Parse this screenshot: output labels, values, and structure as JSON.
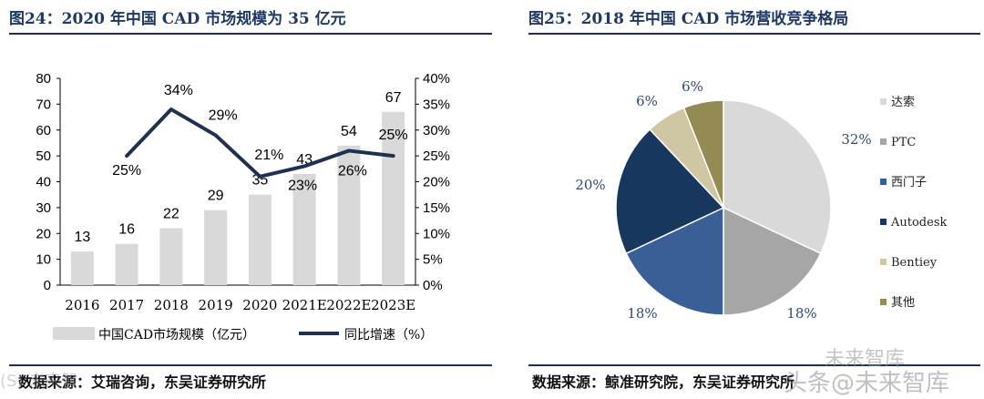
{
  "left": {
    "title": "图24：2020 年中国 CAD 市场规模为 35 亿元",
    "source": "数据来源：艾瑞咨询，东吴证券研究所",
    "legend_bar": "中国CAD市场规模（亿元）",
    "legend_line": "同比增速（%）"
  },
  "right": {
    "title": "图25：2018 年中国 CAD 市场营收竞争格局",
    "source": "数据来源：鲸准研究院，东吴证券研究所"
  },
  "watermark": {
    "text1": "未来智库",
    "text2": "头条@未来智库",
    "text3": "(S) 未来智"
  },
  "colors": {
    "bar": "#d9d9d9",
    "line": "#1f3050",
    "title": "#1f3864"
  },
  "chart_data": [
    {
      "type": "bar",
      "categories": [
        "2016",
        "2017",
        "2018",
        "2019",
        "2020",
        "2021E",
        "2022E",
        "2023E"
      ],
      "series": [
        {
          "name": "中国CAD市场规模（亿元）",
          "type": "bar",
          "axis": "left",
          "values": [
            13,
            16,
            22,
            29,
            35,
            43,
            54,
            67
          ],
          "labels": [
            "13",
            "16",
            "22",
            "29",
            "35",
            "43",
            "54",
            "67"
          ]
        },
        {
          "name": "同比增速（%）",
          "type": "line",
          "axis": "right",
          "values": [
            null,
            25,
            34,
            29,
            21,
            23,
            26,
            25
          ],
          "labels": [
            "",
            "25%",
            "34%",
            "29%",
            "21%",
            "23%",
            "26%",
            "25%"
          ]
        }
      ],
      "ylim": [
        0,
        80
      ],
      "y_ticks": [
        "0",
        "10",
        "20",
        "30",
        "40",
        "50",
        "60",
        "70",
        "80"
      ],
      "y2lim": [
        0,
        40
      ],
      "y2_ticks": [
        "0%",
        "5%",
        "10%",
        "15%",
        "20%",
        "25%",
        "30%",
        "35%",
        "40%"
      ],
      "legend": "bottom"
    },
    {
      "type": "pie",
      "slices": [
        {
          "name": "达索",
          "value": 32,
          "label": "32%",
          "color": "#d9d9d9"
        },
        {
          "name": "PTC",
          "value": 18,
          "label": "18%",
          "color": "#a6a6a6"
        },
        {
          "name": "西门子",
          "value": 18,
          "label": "18%",
          "color": "#3a5f96"
        },
        {
          "name": "Autodesk",
          "value": 20,
          "label": "20%",
          "color": "#17375e"
        },
        {
          "name": "Bentiey",
          "value": 6,
          "label": "6%",
          "color": "#cfc7a4"
        },
        {
          "name": "其他",
          "value": 6,
          "label": "6%",
          "color": "#948a54"
        }
      ],
      "legend": "right"
    }
  ]
}
